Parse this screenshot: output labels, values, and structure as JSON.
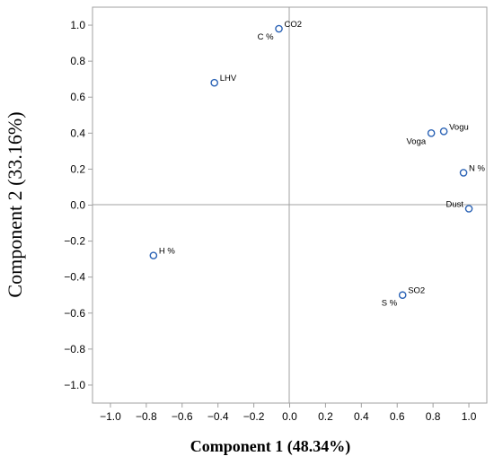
{
  "chart_data": {
    "type": "scatter",
    "xlabel": "Component 1 (48.34%)",
    "ylabel": "Component 2 (33.16%)",
    "xlim": [
      -1.1,
      1.1
    ],
    "ylim": [
      -1.1,
      1.1
    ],
    "x_ticks": [
      "−1.0",
      "−0.8",
      "−0.6",
      "−0.4",
      "−0.2",
      "0.0",
      "0.2",
      "0.4",
      "0.6",
      "0.8",
      "1.0"
    ],
    "y_ticks": [
      "−1.0",
      "−0.8",
      "−0.6",
      "−0.4",
      "−0.2",
      "0.0",
      "0.2",
      "0.4",
      "0.6",
      "0.8",
      "1.0"
    ],
    "reference_lines": {
      "x": 0,
      "y": 0
    },
    "grid": false,
    "marker_color": "#2a62b5",
    "points": [
      {
        "label": "CO2",
        "x": -0.06,
        "y": 0.98,
        "label_pos": "right"
      },
      {
        "label": "C %",
        "x": -0.06,
        "y": 0.98,
        "label_pos": "left-below"
      },
      {
        "label": "LHV",
        "x": -0.42,
        "y": 0.68,
        "label_pos": "right"
      },
      {
        "label": "Vogu",
        "x": 0.86,
        "y": 0.41,
        "label_pos": "right"
      },
      {
        "label": "Voga",
        "x": 0.79,
        "y": 0.4,
        "label_pos": "left-below"
      },
      {
        "label": "N %",
        "x": 0.97,
        "y": 0.18,
        "label_pos": "right"
      },
      {
        "label": "Dust",
        "x": 1.0,
        "y": -0.02,
        "label_pos": "left"
      },
      {
        "label": "H %",
        "x": -0.76,
        "y": -0.28,
        "label_pos": "right"
      },
      {
        "label": "SO2",
        "x": 0.63,
        "y": -0.5,
        "label_pos": "right"
      },
      {
        "label": "S %",
        "x": 0.63,
        "y": -0.5,
        "label_pos": "left-below"
      }
    ]
  }
}
